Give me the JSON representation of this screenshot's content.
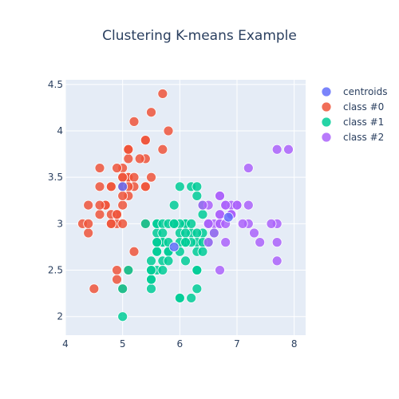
{
  "chart_data": {
    "type": "scatter",
    "title": "Clustering K-means Example",
    "xlim": [
      4,
      8.2
    ],
    "ylim": [
      1.8,
      4.55
    ],
    "x_ticks": [
      4,
      5,
      6,
      7,
      8
    ],
    "y_ticks": [
      2,
      2.5,
      3,
      3.5,
      4,
      4.5
    ],
    "grid": true,
    "legend_position": "right",
    "series": [
      {
        "name": "centroids",
        "color": "#636efa",
        "points": [
          [
            5.0,
            3.4
          ],
          [
            5.9,
            2.75
          ],
          [
            6.85,
            3.07
          ]
        ]
      },
      {
        "name": "class #0",
        "color": "#ef553b",
        "points": [
          [
            5.1,
            3.5
          ],
          [
            4.9,
            3.0
          ],
          [
            4.7,
            3.2
          ],
          [
            4.6,
            3.1
          ],
          [
            5.0,
            3.6
          ],
          [
            5.4,
            3.9
          ],
          [
            4.6,
            3.4
          ],
          [
            5.0,
            3.4
          ],
          [
            4.4,
            2.9
          ],
          [
            4.9,
            3.1
          ],
          [
            5.4,
            3.7
          ],
          [
            4.8,
            3.4
          ],
          [
            4.8,
            3.0
          ],
          [
            4.3,
            3.0
          ],
          [
            5.8,
            4.0
          ],
          [
            5.7,
            4.4
          ],
          [
            5.4,
            3.9
          ],
          [
            5.1,
            3.5
          ],
          [
            5.7,
            3.8
          ],
          [
            5.1,
            3.8
          ],
          [
            5.4,
            3.4
          ],
          [
            5.1,
            3.7
          ],
          [
            4.6,
            3.6
          ],
          [
            5.1,
            3.3
          ],
          [
            4.8,
            3.4
          ],
          [
            5.0,
            3.0
          ],
          [
            5.0,
            3.4
          ],
          [
            5.2,
            3.5
          ],
          [
            5.2,
            3.4
          ],
          [
            4.7,
            3.2
          ],
          [
            4.8,
            3.1
          ],
          [
            5.4,
            3.4
          ],
          [
            5.2,
            4.1
          ],
          [
            5.5,
            4.2
          ],
          [
            4.9,
            3.1
          ],
          [
            5.0,
            3.2
          ],
          [
            5.5,
            3.5
          ],
          [
            4.9,
            3.6
          ],
          [
            4.4,
            3.0
          ],
          [
            5.1,
            3.4
          ],
          [
            5.0,
            3.5
          ],
          [
            4.5,
            2.3
          ],
          [
            4.4,
            3.2
          ],
          [
            5.0,
            3.5
          ],
          [
            5.1,
            3.8
          ],
          [
            4.8,
            3.0
          ],
          [
            5.1,
            3.8
          ],
          [
            4.6,
            3.2
          ],
          [
            5.3,
            3.7
          ],
          [
            5.0,
            3.3
          ],
          [
            4.9,
            2.5
          ],
          [
            4.9,
            2.4
          ],
          [
            5.2,
            2.7
          ],
          [
            5.0,
            2.3
          ],
          [
            5.1,
            2.5
          ],
          [
            5.4,
            3.0
          ]
        ]
      },
      {
        "name": "class #1",
        "color": "#00cc96",
        "points": [
          [
            5.5,
            2.3
          ],
          [
            5.7,
            2.8
          ],
          [
            6.3,
            3.3
          ],
          [
            6.6,
            2.9
          ],
          [
            6.0,
            2.2
          ],
          [
            5.6,
            2.9
          ],
          [
            5.6,
            3.0
          ],
          [
            5.8,
            2.7
          ],
          [
            6.2,
            2.2
          ],
          [
            5.6,
            2.5
          ],
          [
            5.9,
            3.2
          ],
          [
            6.1,
            2.8
          ],
          [
            6.3,
            2.5
          ],
          [
            6.1,
            2.8
          ],
          [
            6.4,
            2.9
          ],
          [
            5.7,
            2.6
          ],
          [
            5.5,
            2.4
          ],
          [
            5.5,
            2.4
          ],
          [
            5.8,
            2.7
          ],
          [
            6.0,
            2.7
          ],
          [
            5.4,
            3.0
          ],
          [
            6.0,
            3.4
          ],
          [
            6.3,
            2.3
          ],
          [
            5.6,
            3.0
          ],
          [
            5.5,
            2.5
          ],
          [
            5.5,
            2.6
          ],
          [
            6.1,
            3.0
          ],
          [
            5.8,
            2.6
          ],
          [
            5.0,
            2.3
          ],
          [
            5.6,
            2.7
          ],
          [
            5.7,
            3.0
          ],
          [
            5.7,
            2.9
          ],
          [
            6.2,
            2.9
          ],
          [
            5.1,
            2.5
          ],
          [
            5.7,
            2.8
          ],
          [
            5.8,
            2.8
          ],
          [
            6.0,
            2.2
          ],
          [
            6.3,
            2.7
          ],
          [
            6.1,
            3.0
          ],
          [
            6.4,
            3.1
          ],
          [
            6.0,
            3.0
          ],
          [
            6.3,
            2.9
          ],
          [
            5.6,
            2.8
          ],
          [
            6.2,
            3.4
          ],
          [
            6.5,
            2.8
          ],
          [
            6.0,
            2.9
          ],
          [
            6.4,
            2.7
          ],
          [
            6.1,
            2.9
          ],
          [
            5.9,
            3.0
          ],
          [
            6.3,
            2.8
          ],
          [
            5.0,
            2.0
          ],
          [
            6.2,
            2.8
          ],
          [
            6.4,
            3.2
          ],
          [
            6.0,
            2.8
          ],
          [
            6.1,
            2.6
          ],
          [
            6.5,
            3.0
          ],
          [
            6.3,
            3.4
          ],
          [
            6.4,
            2.8
          ],
          [
            5.8,
            3.0
          ],
          [
            5.7,
            2.5
          ],
          [
            6.2,
            3.0
          ],
          [
            5.5,
            2.5
          ],
          [
            5.9,
            3.0
          ],
          [
            6.3,
            2.5
          ],
          [
            6.1,
            2.8
          ],
          [
            5.6,
            2.7
          ],
          [
            5.6,
            2.8
          ]
        ]
      },
      {
        "name": "class #2",
        "color": "#ab63fa",
        "points": [
          [
            7.0,
            3.2
          ],
          [
            6.9,
            3.1
          ],
          [
            6.7,
            3.1
          ],
          [
            6.6,
            3.0
          ],
          [
            6.8,
            2.8
          ],
          [
            6.7,
            3.0
          ],
          [
            6.9,
            3.1
          ],
          [
            6.7,
            3.1
          ],
          [
            6.9,
            3.1
          ],
          [
            6.8,
            3.2
          ],
          [
            6.7,
            3.3
          ],
          [
            6.7,
            3.0
          ],
          [
            6.5,
            3.2
          ],
          [
            6.5,
            3.0
          ],
          [
            6.5,
            2.8
          ],
          [
            6.6,
            2.9
          ],
          [
            6.8,
            3.0
          ],
          [
            6.7,
            2.5
          ],
          [
            6.7,
            3.3
          ],
          [
            7.7,
            3.8
          ],
          [
            7.9,
            3.8
          ],
          [
            7.2,
            3.6
          ],
          [
            7.7,
            2.6
          ],
          [
            7.7,
            2.8
          ],
          [
            7.7,
            3.0
          ],
          [
            7.6,
            3.0
          ],
          [
            7.4,
            2.8
          ],
          [
            7.3,
            2.9
          ],
          [
            7.2,
            3.0
          ],
          [
            7.1,
            3.0
          ],
          [
            7.2,
            3.2
          ],
          [
            6.9,
            3.2
          ],
          [
            6.4,
            3.2
          ],
          [
            7.0,
            3.2
          ],
          [
            6.8,
            3.2
          ],
          [
            6.9,
            3.1
          ],
          [
            6.5,
            3.0
          ]
        ]
      }
    ]
  }
}
